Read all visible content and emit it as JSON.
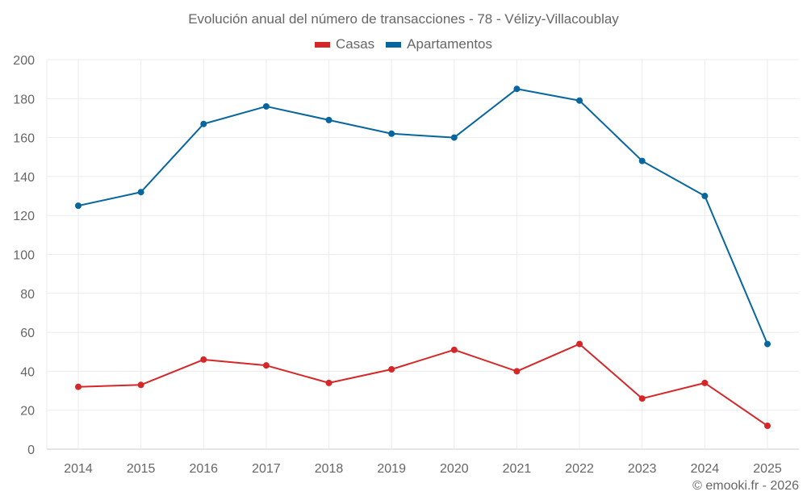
{
  "chart_data": {
    "type": "line",
    "title": "Evolución anual del número de transacciones - 78 - Vélizy-Villacoublay",
    "xlabel": "",
    "ylabel": "",
    "x": [
      "2014",
      "2015",
      "2016",
      "2017",
      "2018",
      "2019",
      "2020",
      "2021",
      "2022",
      "2023",
      "2024",
      "2025"
    ],
    "ylim": [
      0,
      200
    ],
    "yticks": [
      0,
      20,
      40,
      60,
      80,
      100,
      120,
      140,
      160,
      180,
      200
    ],
    "grid": true,
    "legend_position": "top-center",
    "series": [
      {
        "name": "Casas",
        "color": "#d62728",
        "values": [
          32,
          33,
          46,
          43,
          34,
          41,
          51,
          40,
          54,
          26,
          34,
          12
        ]
      },
      {
        "name": "Apartamentos",
        "color": "#07669e",
        "values": [
          125,
          132,
          167,
          176,
          169,
          162,
          160,
          185,
          179,
          148,
          130,
          54
        ]
      }
    ]
  },
  "credit": "© emooki.fr - 2026"
}
